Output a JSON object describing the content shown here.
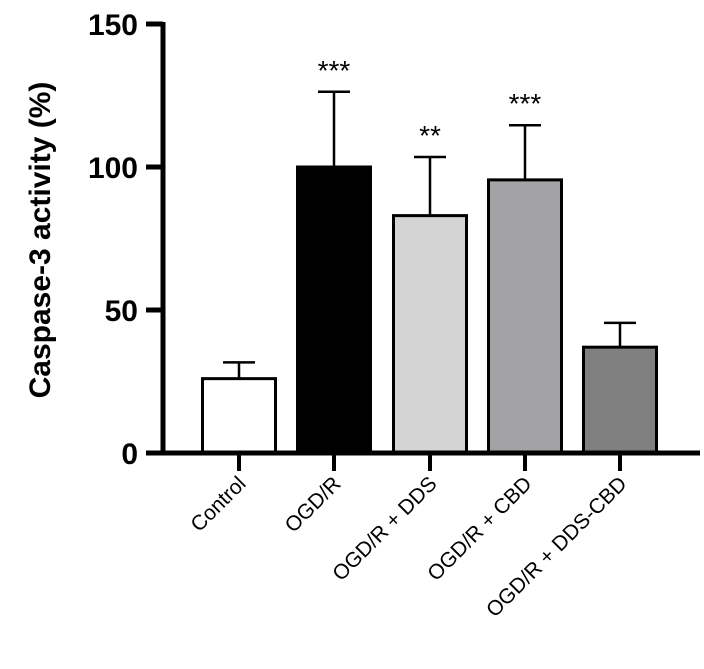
{
  "chart_data": {
    "type": "bar",
    "title": "",
    "xlabel": "",
    "ylabel": "Caspase-3 activity (%)",
    "ylim": [
      0,
      150
    ],
    "yticks": [
      0,
      50,
      100,
      150
    ],
    "grid": false,
    "categories": [
      "Control",
      "OGD/R",
      "OGD/R + DDS",
      "OGD/R + CBD",
      "OGD/R + DDS-CBD"
    ],
    "values": [
      26,
      100,
      83,
      95.5,
      37
    ],
    "error_upper": [
      31.7,
      126.3,
      103.5,
      114.6,
      45.5
    ],
    "significance": [
      "",
      "***",
      "**",
      "***",
      ""
    ],
    "colors": [
      "#ffffff",
      "#000000",
      "#d4d4d4",
      "#a3a3a6",
      "#808080"
    ]
  }
}
